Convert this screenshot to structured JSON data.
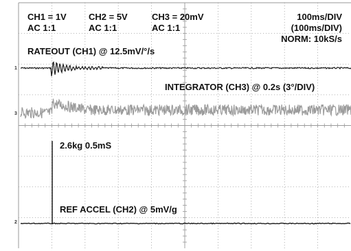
{
  "header": {
    "ch1": {
      "scale": "CH1 = 1V",
      "coupling": "AC 1:1"
    },
    "ch2": {
      "scale": "CH2 = 5V",
      "coupling": "AC 1:1"
    },
    "ch3": {
      "scale": "CH3 = 20mV",
      "coupling": "AC 1:1"
    },
    "timebase": "100ms/DIV",
    "timebase_sub": "(100ms/DIV)",
    "sample": "NORM: 10kS/s"
  },
  "traces": {
    "rateout": "RATEOUT (CH1) @ 12.5mV/°/s",
    "integrator": "INTEGRATOR (CH3) @ 0.2s (3°/DIV)",
    "event": "2.6kg 0.5mS",
    "ref_accel": "REF ACCEL (CH2) @ 5mV/g"
  },
  "markers": {
    "ch1": "1",
    "ch3": "3",
    "ch2": "2"
  },
  "colors": {
    "grid": "#9a9a9a",
    "trace_dark": "#1a1a1a",
    "trace_gray": "#9c9c9c"
  }
}
